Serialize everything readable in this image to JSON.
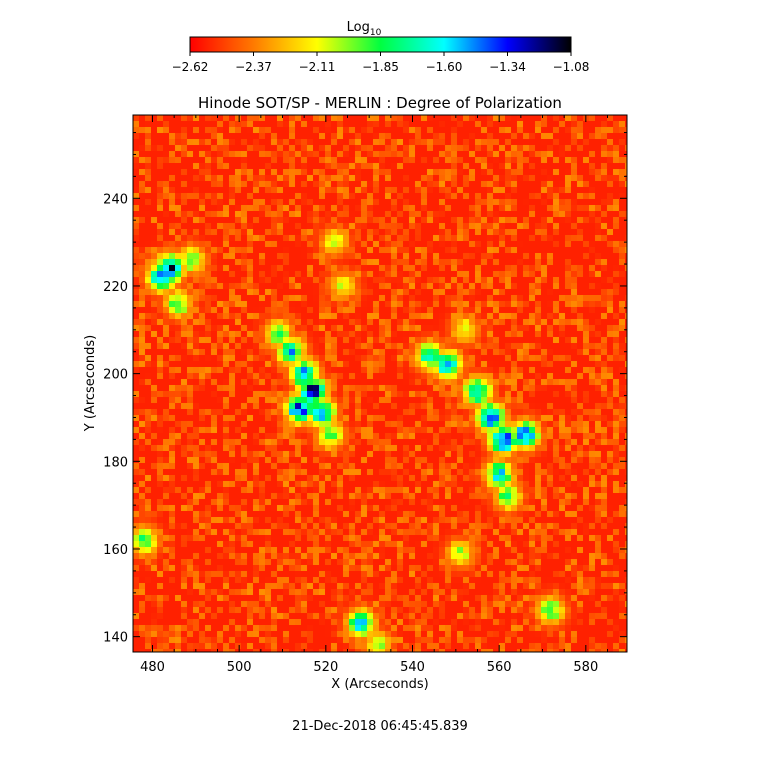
{
  "chart_data": {
    "type": "heatmap",
    "title": "Hinode SOT/SP - MERLIN : Degree of Polarization",
    "xlabel": "X (Arcseconds)",
    "ylabel": "Y (Arcseconds)",
    "xlim": [
      475.5,
      589.5
    ],
    "ylim": [
      136.5,
      259
    ],
    "xticks": [
      480,
      500,
      520,
      540,
      560,
      580
    ],
    "yticks": [
      140,
      160,
      180,
      200,
      220,
      240
    ],
    "grid": false,
    "colorbar": {
      "label": "Log",
      "label_subscript": "10",
      "orientation": "horizontal",
      "placement": "top",
      "range": [
        -2.62,
        -1.08
      ],
      "ticks": [
        "-2.62",
        "-2.37",
        "-2.11",
        "-1.85",
        "-1.60",
        "-1.34",
        "-1.08"
      ],
      "colormap": [
        "#ff0000",
        "#ff7a00",
        "#ffff00",
        "#00ff40",
        "#00ffff",
        "#0000ff",
        "#000000"
      ]
    },
    "background_value": -2.55,
    "strong_regions": [
      {
        "x": 484,
        "y": 224,
        "peak": -1.25
      },
      {
        "x": 482,
        "y": 222,
        "peak": -1.4
      },
      {
        "x": 486,
        "y": 216,
        "peak": -1.85
      },
      {
        "x": 509,
        "y": 209,
        "peak": -1.85
      },
      {
        "x": 512,
        "y": 205,
        "peak": -1.6
      },
      {
        "x": 515,
        "y": 200,
        "peak": -1.4
      },
      {
        "x": 517,
        "y": 196,
        "peak": -1.2
      },
      {
        "x": 519,
        "y": 191,
        "peak": -1.4
      },
      {
        "x": 514,
        "y": 192,
        "peak": -1.25
      },
      {
        "x": 521,
        "y": 186,
        "peak": -1.85
      },
      {
        "x": 522,
        "y": 230,
        "peak": -2.05
      },
      {
        "x": 524,
        "y": 220,
        "peak": -2.05
      },
      {
        "x": 544,
        "y": 204,
        "peak": -1.6
      },
      {
        "x": 548,
        "y": 202,
        "peak": -1.4
      },
      {
        "x": 552,
        "y": 210,
        "peak": -2.05
      },
      {
        "x": 555,
        "y": 196,
        "peak": -1.5
      },
      {
        "x": 558,
        "y": 190,
        "peak": -1.25
      },
      {
        "x": 561,
        "y": 185,
        "peak": -1.2
      },
      {
        "x": 566,
        "y": 186,
        "peak": -1.35
      },
      {
        "x": 560,
        "y": 177,
        "peak": -1.6
      },
      {
        "x": 562,
        "y": 172,
        "peak": -1.85
      },
      {
        "x": 478,
        "y": 162,
        "peak": -1.8
      },
      {
        "x": 528,
        "y": 143,
        "peak": -1.6
      },
      {
        "x": 532,
        "y": 138,
        "peak": -2.0
      },
      {
        "x": 551,
        "y": 159,
        "peak": -2.0
      },
      {
        "x": 572,
        "y": 146,
        "peak": -1.85
      },
      {
        "x": 489,
        "y": 226,
        "peak": -1.85
      }
    ]
  },
  "timestamp": "21-Dec-2018 06:45:45.839"
}
